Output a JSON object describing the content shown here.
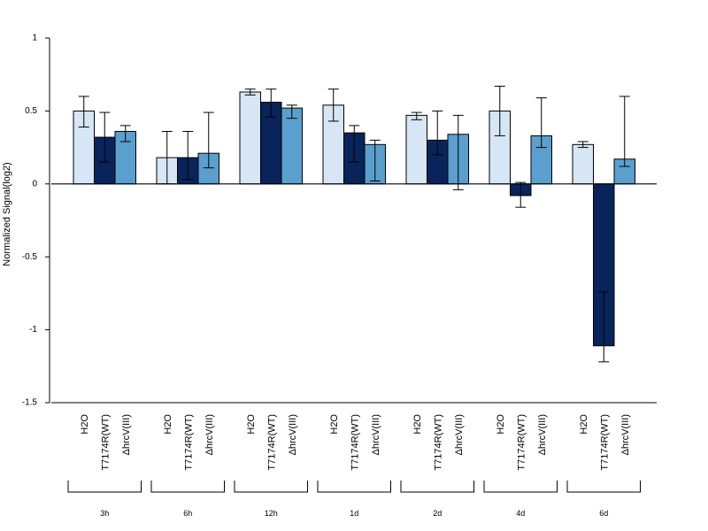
{
  "chart_data": {
    "type": "bar",
    "ylabel": "Normalized Signal(log2)",
    "ylim": [
      -1.5,
      1
    ],
    "yticks": [
      "1",
      "0.5",
      "0",
      "-0.5",
      "-1",
      "-1.5"
    ],
    "ytick_values": [
      1,
      0.5,
      0,
      -0.5,
      -1,
      -1.5
    ],
    "groups": [
      "3h",
      "6h",
      "12h",
      "1d",
      "2d",
      "4d",
      "6d"
    ],
    "series": [
      {
        "name": "H2O",
        "color": "#d6e6f4",
        "values": [
          0.5,
          0.18,
          0.63,
          0.54,
          0.47,
          0.5,
          0.27
        ],
        "err_low": [
          0.39,
          0.0,
          0.61,
          0.43,
          0.44,
          0.33,
          0.25
        ],
        "err_high": [
          0.6,
          0.36,
          0.65,
          0.65,
          0.49,
          0.67,
          0.29
        ]
      },
      {
        "name": "T7174R(WT)",
        "color": "#08245a",
        "values": [
          0.32,
          0.18,
          0.56,
          0.35,
          0.3,
          -0.08,
          -1.11
        ],
        "err_low": [
          0.15,
          0.03,
          0.46,
          0.15,
          0.2,
          -0.16,
          -1.22
        ],
        "err_high": [
          0.49,
          0.36,
          0.65,
          0.4,
          0.5,
          0.01,
          -0.74
        ]
      },
      {
        "name": "ΔhrcV(III)",
        "color": "#5a9fcd",
        "values": [
          0.36,
          0.21,
          0.52,
          0.27,
          0.34,
          0.33,
          0.17
        ],
        "err_low": [
          0.29,
          0.11,
          0.45,
          0.02,
          -0.04,
          0.25,
          0.12
        ],
        "err_high": [
          0.4,
          0.49,
          0.54,
          0.3,
          0.47,
          0.59,
          0.6
        ]
      }
    ]
  }
}
